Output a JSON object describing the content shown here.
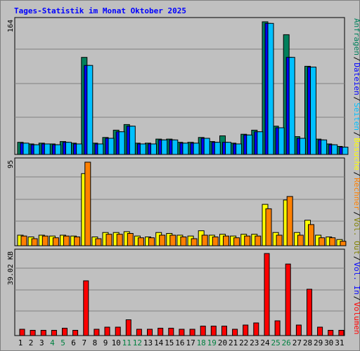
{
  "title": "Tages-Statistik im Monat Oktober 2025",
  "colors": {
    "background": "#c0c0c0",
    "plot_bg": "#c0c0c0",
    "grid": "#808080",
    "title": "#0000ff",
    "weekday_label": "#000000",
    "weekend_label": "#008040",
    "Anfragen": "#00805c",
    "Dateien": "#0000ff",
    "Seiten": "#00c0ff",
    "Besuche": "#ffff00",
    "Rechner": "#ff8000",
    "Vol. Out": "#808000",
    "Vol. In": "#0000ff",
    "Volumen": "#ff0000"
  },
  "legend_right": {
    "top": [
      {
        "text": "Anfragen",
        "color": "#00805c"
      },
      {
        "text": "/",
        "color": "#000000"
      },
      {
        "text": "Dateien",
        "color": "#0000ff"
      },
      {
        "text": "/",
        "color": "#000000"
      },
      {
        "text": "Seiten",
        "color": "#00c0ff"
      },
      {
        "text": "/",
        "color": "#000000"
      },
      {
        "text": "Besuche",
        "color": "#ffff00"
      },
      {
        "text": "/",
        "color": "#000000"
      },
      {
        "text": "Rechner",
        "color": "#ff8000"
      },
      {
        "text": "/",
        "color": "#000000"
      },
      {
        "text": "Vol. Out",
        "color": "#808000"
      },
      {
        "text": "/",
        "color": "#000000"
      },
      {
        "text": "Vol. In",
        "color": "#0000ff"
      },
      {
        "text": "/",
        "color": "#000000"
      },
      {
        "text": "Volumen",
        "color": "#ff0000"
      }
    ]
  },
  "chart_data": [
    {
      "type": "bar",
      "panel": "hits",
      "y_max_label": "164",
      "ylim": [
        0,
        164
      ],
      "categories": [
        "1",
        "2",
        "3",
        "4",
        "5",
        "6",
        "7",
        "8",
        "9",
        "10",
        "11",
        "12",
        "13",
        "14",
        "15",
        "16",
        "17",
        "18",
        "19",
        "20",
        "21",
        "22",
        "23",
        "24",
        "25",
        "26",
        "27",
        "28",
        "29",
        "30",
        "31"
      ],
      "weekend": [
        4,
        5,
        11,
        12,
        18,
        19,
        25,
        26
      ],
      "series": [
        {
          "name": "Anfragen",
          "values": [
            15,
            13,
            14,
            13,
            16,
            14,
            120,
            14,
            21,
            30,
            37,
            14,
            14,
            19,
            19,
            15,
            15,
            21,
            16,
            23,
            14,
            25,
            30,
            164,
            35,
            148,
            22,
            109,
            19,
            13,
            10
          ]
        },
        {
          "name": "Dateien",
          "values": [
            14,
            12,
            13,
            12,
            15,
            13,
            110,
            13,
            20,
            28,
            35,
            13,
            13,
            18,
            18,
            14,
            14,
            20,
            15,
            15,
            13,
            24,
            28,
            162,
            33,
            120,
            20,
            108,
            18,
            12,
            9
          ]
        },
        {
          "name": "Seiten",
          "values": [
            14,
            12,
            13,
            12,
            15,
            13,
            110,
            13,
            20,
            28,
            35,
            13,
            13,
            18,
            18,
            14,
            14,
            20,
            15,
            15,
            13,
            24,
            28,
            162,
            33,
            120,
            20,
            108,
            18,
            12,
            9
          ]
        }
      ]
    },
    {
      "type": "bar",
      "panel": "visits",
      "y_max_label": "95",
      "ylim": [
        0,
        95
      ],
      "categories": [
        "1",
        "2",
        "3",
        "4",
        "5",
        "6",
        "7",
        "8",
        "9",
        "10",
        "11",
        "12",
        "13",
        "14",
        "15",
        "16",
        "17",
        "18",
        "19",
        "20",
        "21",
        "22",
        "23",
        "24",
        "25",
        "26",
        "27",
        "28",
        "29",
        "30",
        "31"
      ],
      "series": [
        {
          "name": "Besuche",
          "values": [
            12,
            10,
            12,
            11,
            12,
            11,
            82,
            10,
            15,
            15,
            16,
            11,
            10,
            15,
            14,
            12,
            11,
            17,
            12,
            13,
            11,
            13,
            13,
            47,
            15,
            52,
            15,
            29,
            12,
            10,
            7
          ]
        },
        {
          "name": "Rechner",
          "values": [
            11,
            8,
            11,
            9,
            11,
            10,
            95,
            8,
            13,
            13,
            14,
            9,
            9,
            12,
            12,
            10,
            8,
            12,
            10,
            11,
            9,
            11,
            11,
            42,
            12,
            56,
            12,
            24,
            9,
            9,
            5
          ]
        }
      ]
    },
    {
      "type": "bar",
      "panel": "volume",
      "y_max_label": "39.02 KB",
      "ylim": [
        0,
        39.02
      ],
      "categories": [
        "1",
        "2",
        "3",
        "4",
        "5",
        "6",
        "7",
        "8",
        "9",
        "10",
        "11",
        "12",
        "13",
        "14",
        "15",
        "16",
        "17",
        "18",
        "19",
        "20",
        "21",
        "22",
        "23",
        "24",
        "25",
        "26",
        "27",
        "28",
        "29",
        "30",
        "31"
      ],
      "series": [
        {
          "name": "Volumen",
          "values": [
            3,
            2.5,
            2.5,
            2.5,
            3.5,
            2.5,
            26,
            3,
            4,
            4,
            7.5,
            3,
            3,
            3.5,
            3.5,
            3,
            3,
            4.5,
            4.5,
            4.5,
            3,
            5,
            6,
            39,
            7,
            34,
            5,
            22,
            4,
            2.5,
            2.5
          ]
        }
      ]
    }
  ]
}
